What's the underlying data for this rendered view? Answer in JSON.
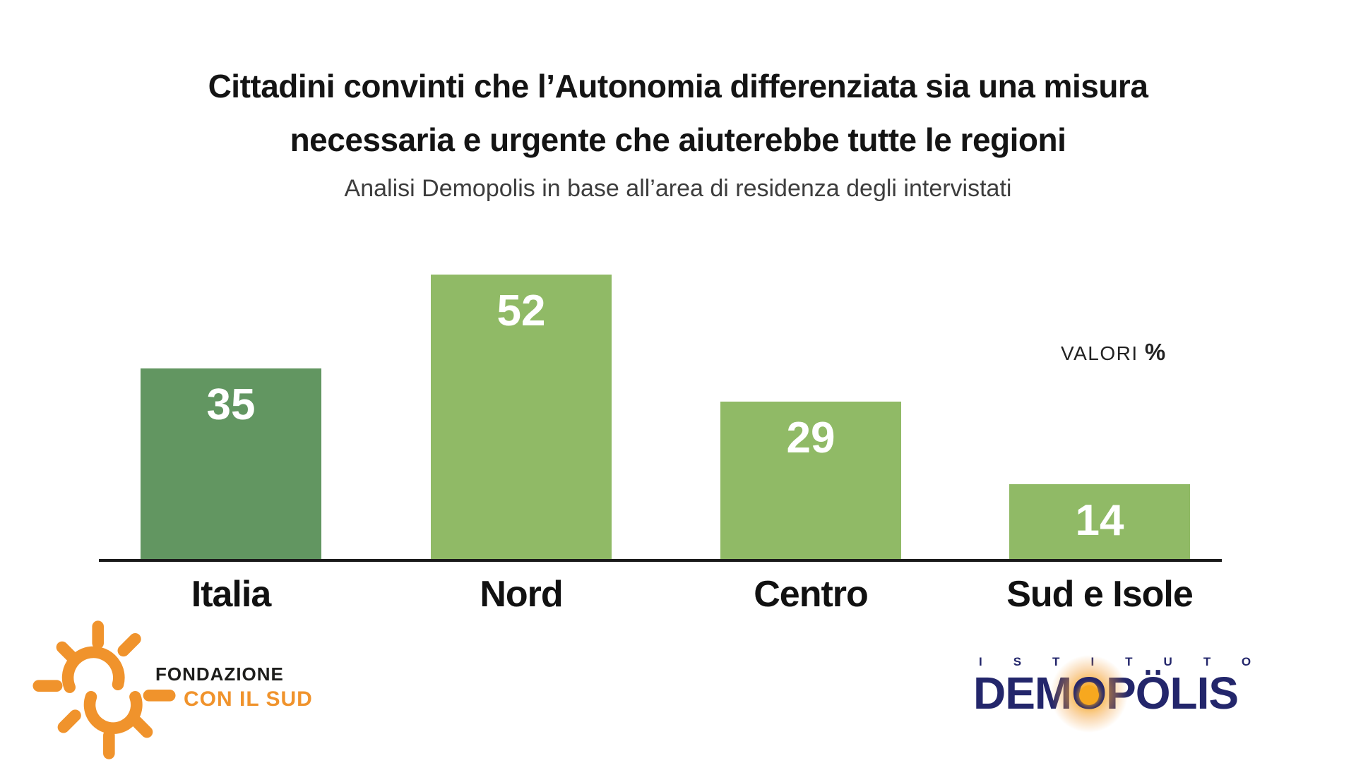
{
  "slide": {
    "title_line1": "Cittadini convinti che l’Autonomia differenziata sia una misura",
    "title_line2": "necessaria e urgente che aiuterebbe tutte le regioni",
    "subtitle": "Analisi Demopolis in base all’area di residenza degli intervistati",
    "valori_label": "VALORI",
    "valori_unit": "%"
  },
  "chart_data": {
    "type": "bar",
    "title": "Cittadini convinti che l’Autonomia differenziata sia una misura necessaria e urgente che aiuterebbe tutte le regioni",
    "subtitle": "Analisi Demopolis in base all’area di residenza degli intervistati",
    "categories": [
      "Italia",
      "Nord",
      "Centro",
      "Sud e Isole"
    ],
    "values": [
      35,
      52,
      29,
      14
    ],
    "unit": "%",
    "value_labels_inside_bars": true,
    "bar_colors": [
      "#629661",
      "#90ba66",
      "#90ba66",
      "#90ba66"
    ],
    "value_label_color": "#ffffff",
    "ylim": [
      0,
      55
    ],
    "grid": false,
    "legend": "none",
    "x_axis_line": true
  },
  "footer": {
    "fondazione": {
      "name_line1": "FONDAZIONE",
      "name_line2": "CON IL SUD",
      "orange": "#f0932c",
      "text_dark": "#1d1d1b"
    },
    "demopolis": {
      "istituto": "ISTITUTO",
      "brand_pre": "DEM",
      "brand_o": "O",
      "brand_post": "PÖLIS",
      "navy": "#23266b",
      "orange": "#f7a81f"
    }
  }
}
